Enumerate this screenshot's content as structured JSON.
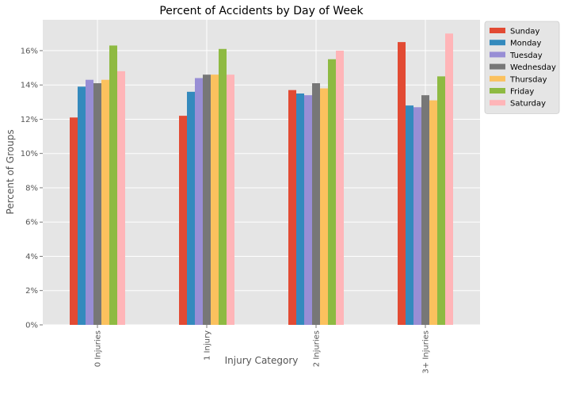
{
  "chart_data": {
    "type": "bar",
    "title": "Percent of Accidents by Day of Week",
    "xlabel": "Injury Category",
    "ylabel": "Percent of Groups",
    "categories": [
      "0 Injuries",
      "1 Injury",
      "2 Injuries",
      "3+ Injuries"
    ],
    "ylim": [
      0,
      17.8
    ],
    "yticks": [
      0,
      2,
      4,
      6,
      8,
      10,
      12,
      14,
      16
    ],
    "ytick_labels": [
      "0%",
      "2%",
      "4%",
      "6%",
      "8%",
      "10%",
      "12%",
      "14%",
      "16%"
    ],
    "grid": true,
    "legend_position": "top-right outside",
    "series": [
      {
        "name": "Sunday",
        "color": "#E24A33",
        "values": [
          12.1,
          12.2,
          13.7,
          16.5
        ]
      },
      {
        "name": "Monday",
        "color": "#348ABD",
        "values": [
          13.9,
          13.6,
          13.5,
          12.8
        ]
      },
      {
        "name": "Tuesday",
        "color": "#988ED5",
        "values": [
          14.3,
          14.4,
          13.4,
          12.7
        ]
      },
      {
        "name": "Wednesday",
        "color": "#777777",
        "values": [
          14.1,
          14.6,
          14.1,
          13.4
        ]
      },
      {
        "name": "Thursday",
        "color": "#FBC15E",
        "values": [
          14.3,
          14.6,
          13.8,
          13.1
        ]
      },
      {
        "name": "Friday",
        "color": "#8EBA42",
        "values": [
          16.3,
          16.1,
          15.5,
          14.5
        ]
      },
      {
        "name": "Saturday",
        "color": "#FFB5B8",
        "values": [
          14.8,
          14.6,
          16.0,
          17.0
        ]
      }
    ],
    "colors": {
      "plot_background": "#E5E5E5",
      "grid": "#FFFFFF",
      "text": "#555555"
    }
  }
}
